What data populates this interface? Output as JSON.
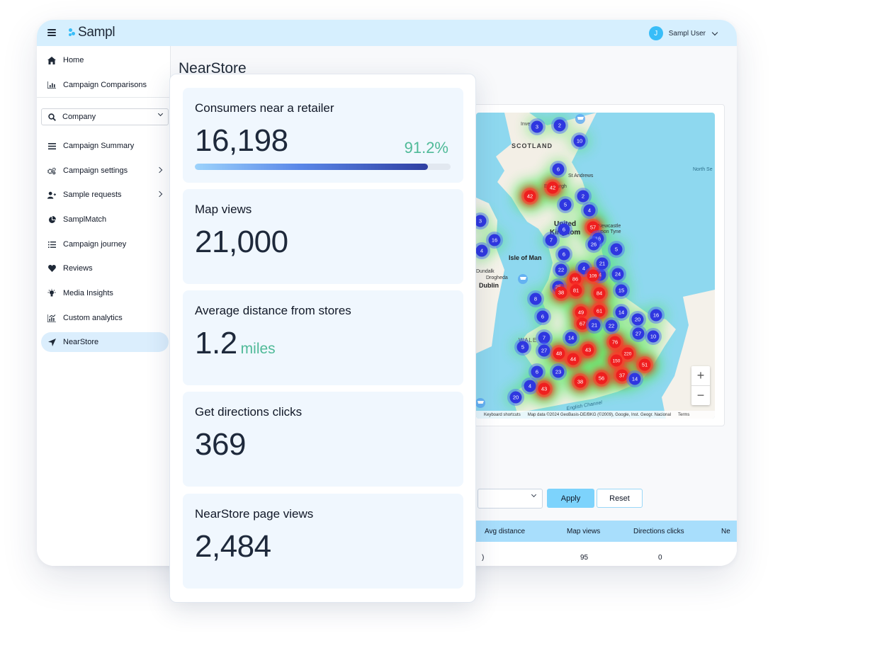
{
  "app": {
    "logo": "Sampl"
  },
  "user": {
    "initial": "J",
    "name": "Sampl User"
  },
  "sidebar": {
    "items": [
      {
        "label": "Home",
        "icon": "home-icon"
      },
      {
        "label": "Campaign Comparisons",
        "icon": "chart-icon"
      },
      {
        "label": "Campaign Summary",
        "icon": "list-icon"
      },
      {
        "label": "Campaign settings",
        "icon": "gears-icon"
      },
      {
        "label": "Sample requests",
        "icon": "user-plus-icon"
      },
      {
        "label": "SamplMatch",
        "icon": "pie-icon"
      },
      {
        "label": "Campaign journey",
        "icon": "checklist-icon"
      },
      {
        "label": "Reviews",
        "icon": "heart-icon"
      },
      {
        "label": "Media Insights",
        "icon": "lightbulb-icon"
      },
      {
        "label": "Custom analytics",
        "icon": "analytics-icon"
      },
      {
        "label": "NearStore",
        "icon": "location-arrow-icon"
      }
    ],
    "company_select": "Company"
  },
  "main": {
    "title": "NearStore",
    "map": {
      "labels": {
        "scotland": "SCOTLAND",
        "uk_top": "United",
        "uk_bottom": "Kingdom",
        "isle_of_man": "Isle of Man",
        "dublin": "Dublin",
        "dundalk": "Dundalk",
        "drogheda": "Drogheda",
        "north_sea": "North Se",
        "wales": "WALE",
        "english_channel": "English Channel",
        "edinburgh": "Edinburgh",
        "st_andrews": "St Andrews",
        "newcastle_top": "Newcastle",
        "newcastle_bottom": "upon Tyne",
        "inverness": "Inve"
      },
      "footer": {
        "shortcuts": "Keyboard shortcuts",
        "attribution": "Map data ©2024 GeoBasis-DE/BKG (©2009), Google, Inst. Geogr. Nacional",
        "terms": "Terms"
      },
      "zoom_in": "+",
      "zoom_out": "−",
      "clusters": [
        {
          "n": "3",
          "c": "blue"
        },
        {
          "n": "2",
          "c": "blue"
        },
        {
          "n": "10",
          "c": "blue"
        },
        {
          "n": "6",
          "c": "blue"
        },
        {
          "n": "42",
          "c": "red"
        },
        {
          "n": "42",
          "c": "red"
        },
        {
          "n": "2",
          "c": "blue"
        },
        {
          "n": "5",
          "c": "blue"
        },
        {
          "n": "4",
          "c": "blue"
        },
        {
          "n": "3",
          "c": "blue"
        },
        {
          "n": "16",
          "c": "blue"
        },
        {
          "n": "4",
          "c": "blue"
        },
        {
          "n": "6",
          "c": "blue"
        },
        {
          "n": "57",
          "c": "red"
        },
        {
          "n": "7",
          "c": "blue"
        },
        {
          "n": "16",
          "c": "blue"
        },
        {
          "n": "26",
          "c": "blue"
        },
        {
          "n": "5",
          "c": "blue"
        },
        {
          "n": "6",
          "c": "blue"
        },
        {
          "n": "4",
          "c": "blue"
        },
        {
          "n": "22",
          "c": "blue"
        },
        {
          "n": "4",
          "c": "blue"
        },
        {
          "n": "21",
          "c": "blue"
        },
        {
          "n": "109",
          "c": "red"
        },
        {
          "n": "86",
          "c": "red"
        },
        {
          "n": "24",
          "c": "blue"
        },
        {
          "n": "25",
          "c": "blue"
        },
        {
          "n": "38",
          "c": "red"
        },
        {
          "n": "81",
          "c": "red"
        },
        {
          "n": "84",
          "c": "red"
        },
        {
          "n": "15",
          "c": "blue"
        },
        {
          "n": "8",
          "c": "blue"
        },
        {
          "n": "61",
          "c": "red"
        },
        {
          "n": "49",
          "c": "red"
        },
        {
          "n": "14",
          "c": "blue"
        },
        {
          "n": "16",
          "c": "blue"
        },
        {
          "n": "6",
          "c": "blue"
        },
        {
          "n": "67",
          "c": "red"
        },
        {
          "n": "21",
          "c": "blue"
        },
        {
          "n": "22",
          "c": "blue"
        },
        {
          "n": "20",
          "c": "blue"
        },
        {
          "n": "27",
          "c": "blue"
        },
        {
          "n": "10",
          "c": "blue"
        },
        {
          "n": "7",
          "c": "blue"
        },
        {
          "n": "14",
          "c": "blue"
        },
        {
          "n": "76",
          "c": "red"
        },
        {
          "n": "5",
          "c": "blue"
        },
        {
          "n": "27",
          "c": "blue"
        },
        {
          "n": "48",
          "c": "red"
        },
        {
          "n": "43",
          "c": "red"
        },
        {
          "n": "220",
          "c": "red"
        },
        {
          "n": "44",
          "c": "red"
        },
        {
          "n": "150",
          "c": "red"
        },
        {
          "n": "51",
          "c": "red"
        },
        {
          "n": "6",
          "c": "blue"
        },
        {
          "n": "23",
          "c": "blue"
        },
        {
          "n": "4",
          "c": "blue"
        },
        {
          "n": "38",
          "c": "red"
        },
        {
          "n": "56",
          "c": "red"
        },
        {
          "n": "37",
          "c": "red"
        },
        {
          "n": "14",
          "c": "blue"
        },
        {
          "n": "43",
          "c": "red"
        },
        {
          "n": "20",
          "c": "blue"
        }
      ]
    },
    "filters": {
      "apply": "Apply",
      "reset": "Reset"
    },
    "table": {
      "headers": [
        "Avg distance",
        "Map views",
        "Directions clicks",
        "Ne"
      ],
      "rows": [
        {
          "avg_distance": ")",
          "map_views": "95",
          "directions_clicks": "0"
        }
      ]
    }
  },
  "stats": [
    {
      "label": "Consumers near a retailer",
      "value": "16,198",
      "percent": "91.2%",
      "progress": 0.912
    },
    {
      "label": "Map views",
      "value": "21,000"
    },
    {
      "label": "Average distance from stores",
      "value": "1.2",
      "unit": "miles"
    },
    {
      "label": "Get directions clicks",
      "value": "369"
    },
    {
      "label": "NearStore page views",
      "value": "2,484"
    }
  ],
  "colors": {
    "accent": "#7dd3fc",
    "topbar": "#d6effe",
    "positive": "#4fba98",
    "cluster_blue": "#2f37e0",
    "cluster_red": "#ef1f1f"
  }
}
